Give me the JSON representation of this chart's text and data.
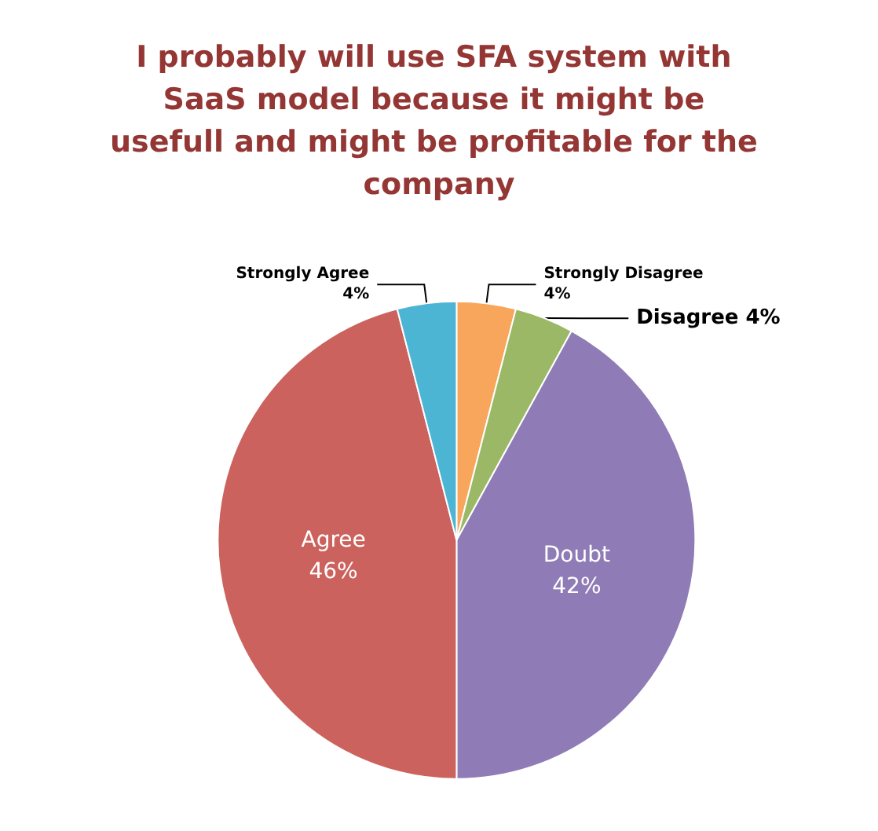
{
  "chart_data": {
    "type": "pie",
    "title": "I probably will use SFA system with SaaS model because it might be usefull and might be profitable for the company",
    "categories": [
      "Strongly Disagree",
      "Disagree",
      "Doubt",
      "Agree",
      "Strongly Agree"
    ],
    "values": [
      4,
      4,
      42,
      46,
      4
    ],
    "value_labels": [
      "4%",
      "4%",
      "42%",
      "46%",
      "4%"
    ],
    "colors": [
      "#f8a65c",
      "#9ab865",
      "#8f7bb5",
      "#cc625d",
      "#4cb5d3"
    ],
    "legend": false
  }
}
